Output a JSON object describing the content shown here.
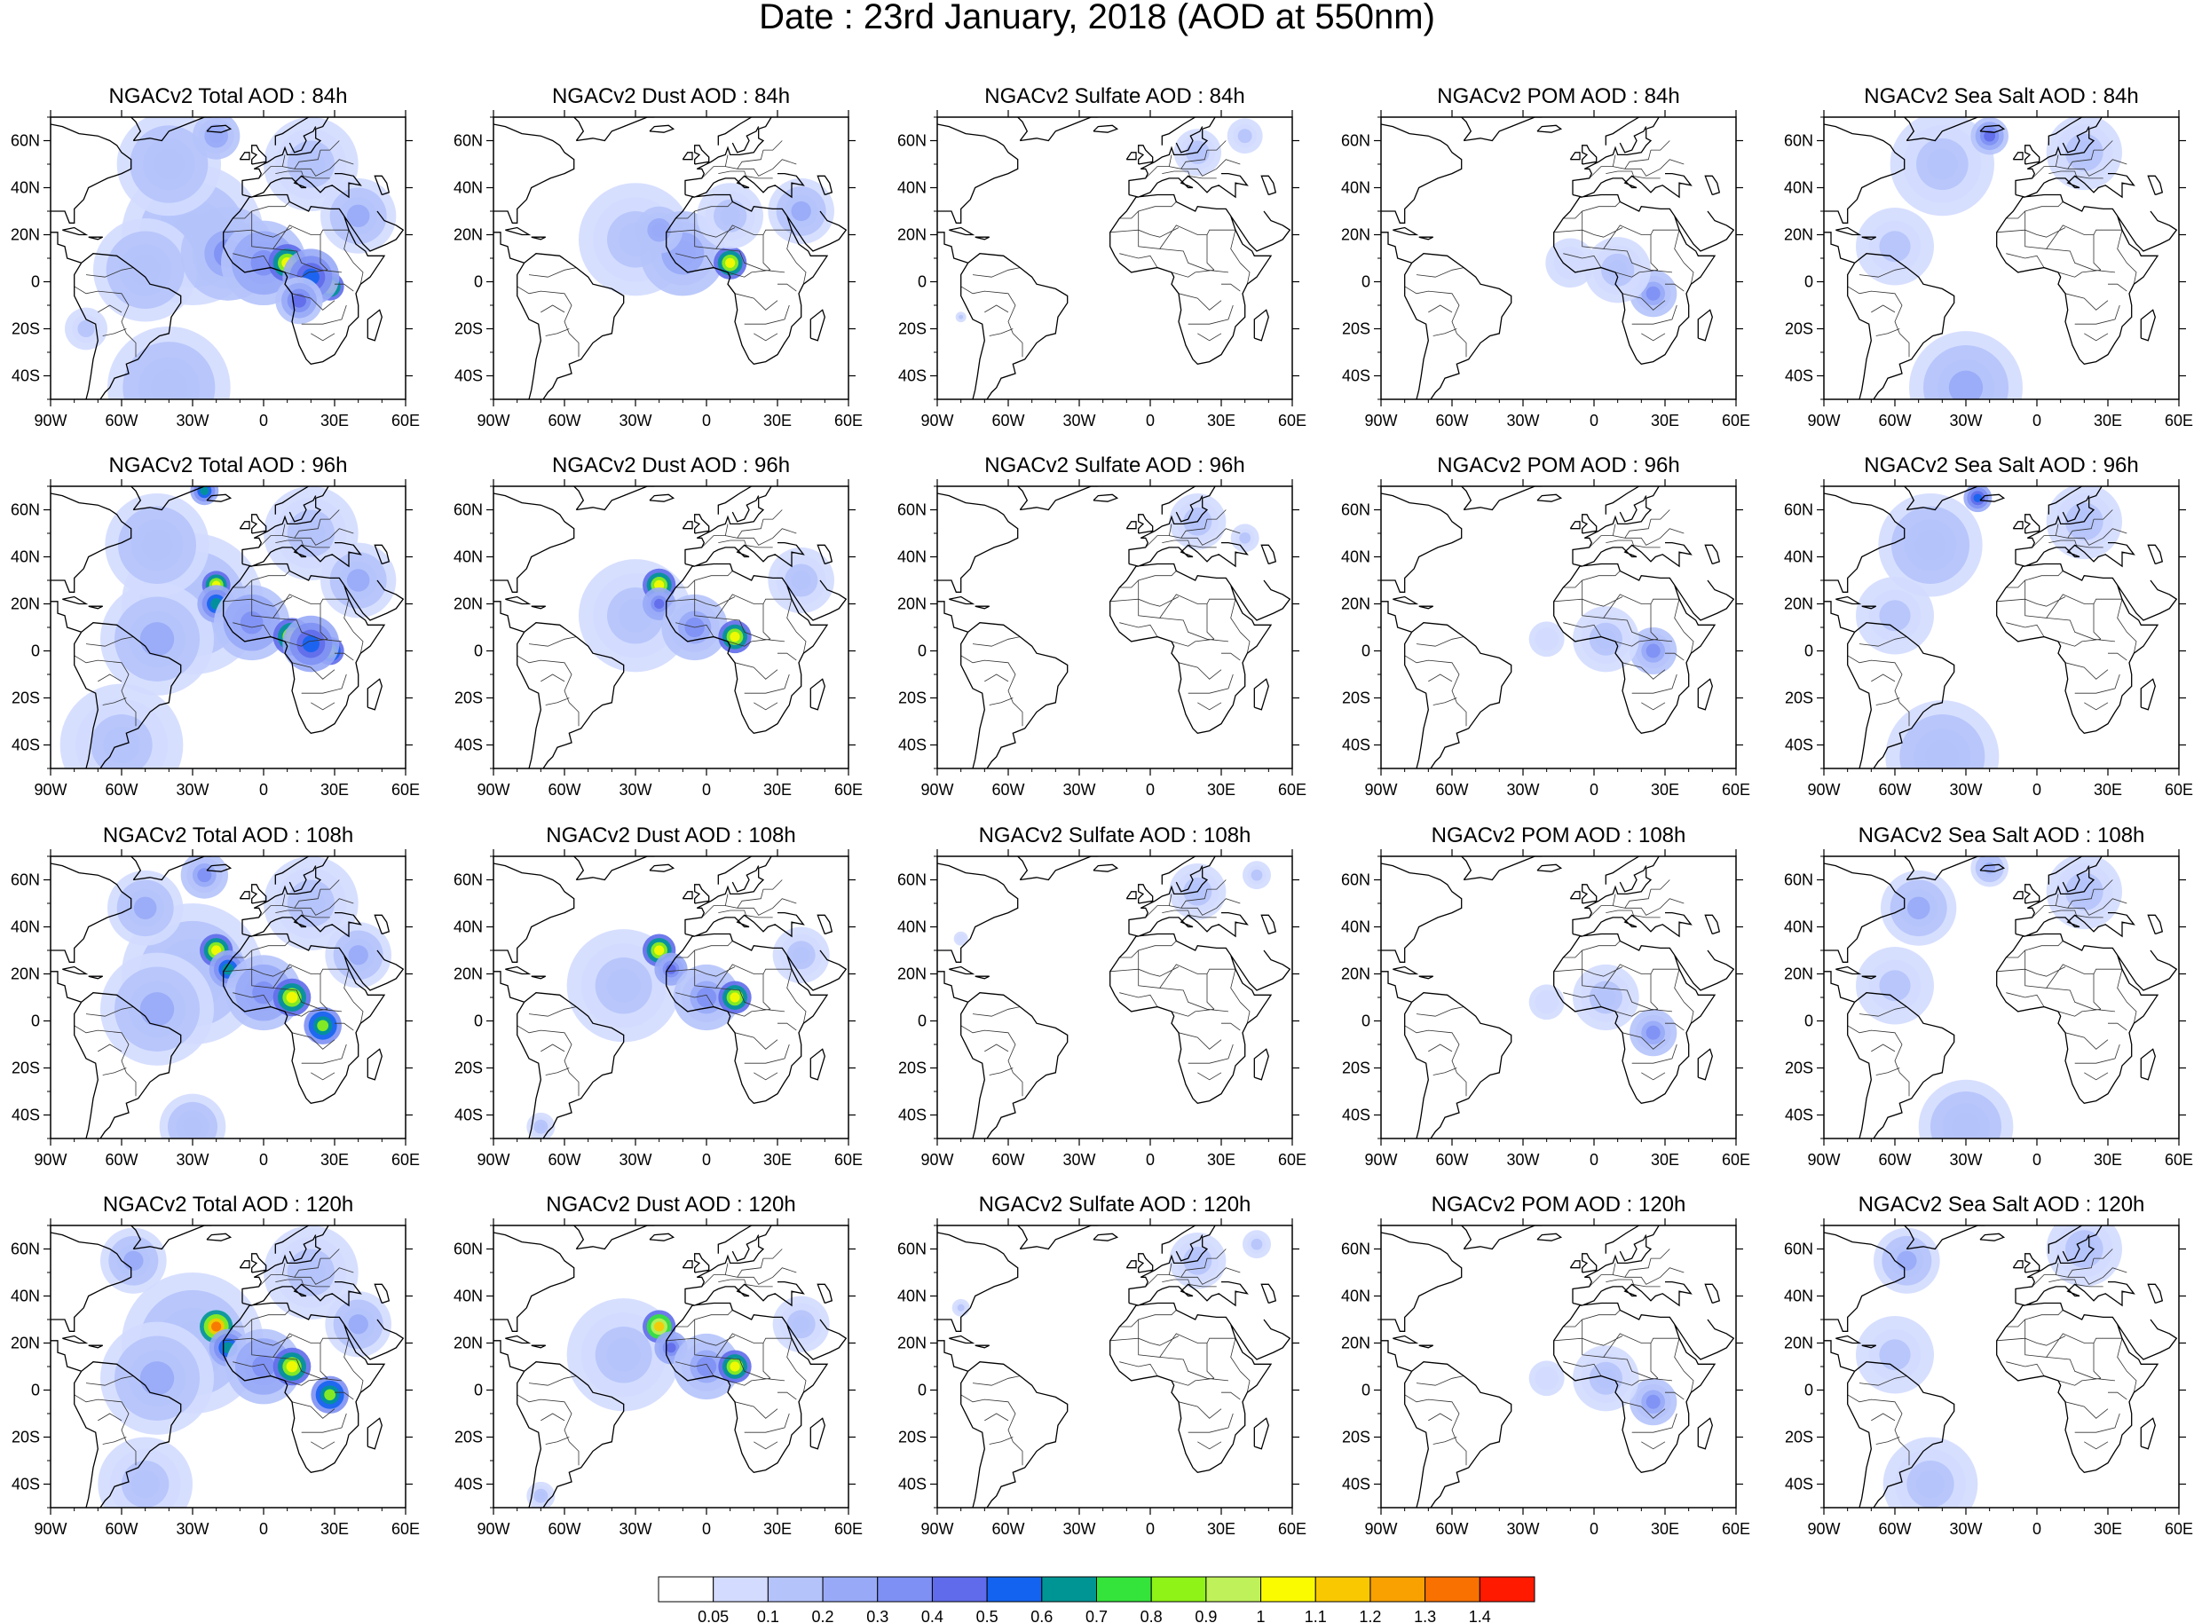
{
  "title": "Date : 23rd January, 2018 (AOD at 550nm)",
  "rows": [
    {
      "hour": "84h",
      "panels": [
        {
          "title": "NGACv2 Total AOD : 84h",
          "species": "total"
        },
        {
          "title": "NGACv2 Dust AOD : 84h",
          "species": "dust"
        },
        {
          "title": "NGACv2 Sulfate AOD : 84h",
          "species": "sulfate"
        },
        {
          "title": "NGACv2 POM AOD : 84h",
          "species": "pom"
        },
        {
          "title": "NGACv2 Sea Salt AOD : 84h",
          "species": "seasalt"
        }
      ]
    },
    {
      "hour": "96h",
      "panels": [
        {
          "title": "NGACv2 Total AOD : 96h",
          "species": "total"
        },
        {
          "title": "NGACv2 Dust AOD : 96h",
          "species": "dust"
        },
        {
          "title": "NGACv2 Sulfate AOD : 96h",
          "species": "sulfate"
        },
        {
          "title": "NGACv2 POM AOD : 96h",
          "species": "pom"
        },
        {
          "title": "NGACv2 Sea Salt AOD : 96h",
          "species": "seasalt"
        }
      ]
    },
    {
      "hour": "108h",
      "panels": [
        {
          "title": "NGACv2 Total AOD : 108h",
          "species": "total"
        },
        {
          "title": "NGACv2 Dust AOD : 108h",
          "species": "dust"
        },
        {
          "title": "NGACv2 Sulfate AOD : 108h",
          "species": "sulfate"
        },
        {
          "title": "NGACv2 POM AOD : 108h",
          "species": "pom"
        },
        {
          "title": "NGACv2 Sea Salt AOD : 108h",
          "species": "seasalt"
        }
      ]
    },
    {
      "hour": "120h",
      "panels": [
        {
          "title": "NGACv2 Total AOD : 120h",
          "species": "total"
        },
        {
          "title": "NGACv2 Dust AOD : 120h",
          "species": "dust"
        },
        {
          "title": "NGACv2 Sulfate AOD : 120h",
          "species": "sulfate"
        },
        {
          "title": "NGACv2 POM AOD : 120h",
          "species": "pom"
        },
        {
          "title": "NGACv2 Sea Salt  AOD : 120h",
          "species": "seasalt"
        }
      ]
    }
  ],
  "axes": {
    "lon_range": [
      -90,
      60
    ],
    "lat_range": [
      -50,
      70
    ],
    "lon_ticks": [
      {
        "v": -90,
        "t": "90W"
      },
      {
        "v": -60,
        "t": "60W"
      },
      {
        "v": -30,
        "t": "30W"
      },
      {
        "v": 0,
        "t": "0"
      },
      {
        "v": 30,
        "t": "30E"
      },
      {
        "v": 60,
        "t": "60E"
      }
    ],
    "lat_ticks": [
      {
        "v": 60,
        "t": "60N"
      },
      {
        "v": 40,
        "t": "40N"
      },
      {
        "v": 20,
        "t": "20N"
      },
      {
        "v": 0,
        "t": "0"
      },
      {
        "v": -20,
        "t": "20S"
      },
      {
        "v": -40,
        "t": "40S"
      }
    ]
  },
  "colorbar": {
    "colors": [
      "#ffffff",
      "#d3dcff",
      "#b5c3fb",
      "#98aaf7",
      "#7e90f3",
      "#5f6bea",
      "#1463f0",
      "#009595",
      "#35e43a",
      "#8ff317",
      "#bff25a",
      "#fbfb00",
      "#fac800",
      "#f8a100",
      "#f97100",
      "#ff1a00"
    ],
    "labels": [
      "0.05",
      "0.1",
      "0.2",
      "0.3",
      "0.4",
      "0.5",
      "0.6",
      "0.7",
      "0.8",
      "0.9",
      "1",
      "1.1",
      "1.2",
      "1.3",
      "1.4"
    ]
  }
}
